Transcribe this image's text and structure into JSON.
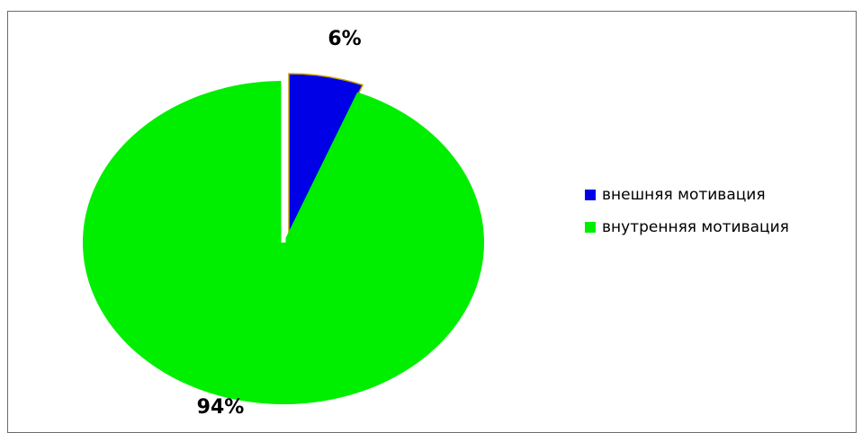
{
  "chart_data": {
    "type": "pie",
    "slices": [
      {
        "name": "внешняя мотивация",
        "value": 6,
        "label": "6%",
        "color": "#0000e6",
        "exploded": true
      },
      {
        "name": "внутренняя мотивация",
        "value": 94,
        "label": "94%",
        "color": "#00ee00",
        "exploded": false
      }
    ],
    "start_angle_deg": 0,
    "direction": "clockwise",
    "legend_position": "right",
    "slice_border_color": "#c8a000"
  }
}
